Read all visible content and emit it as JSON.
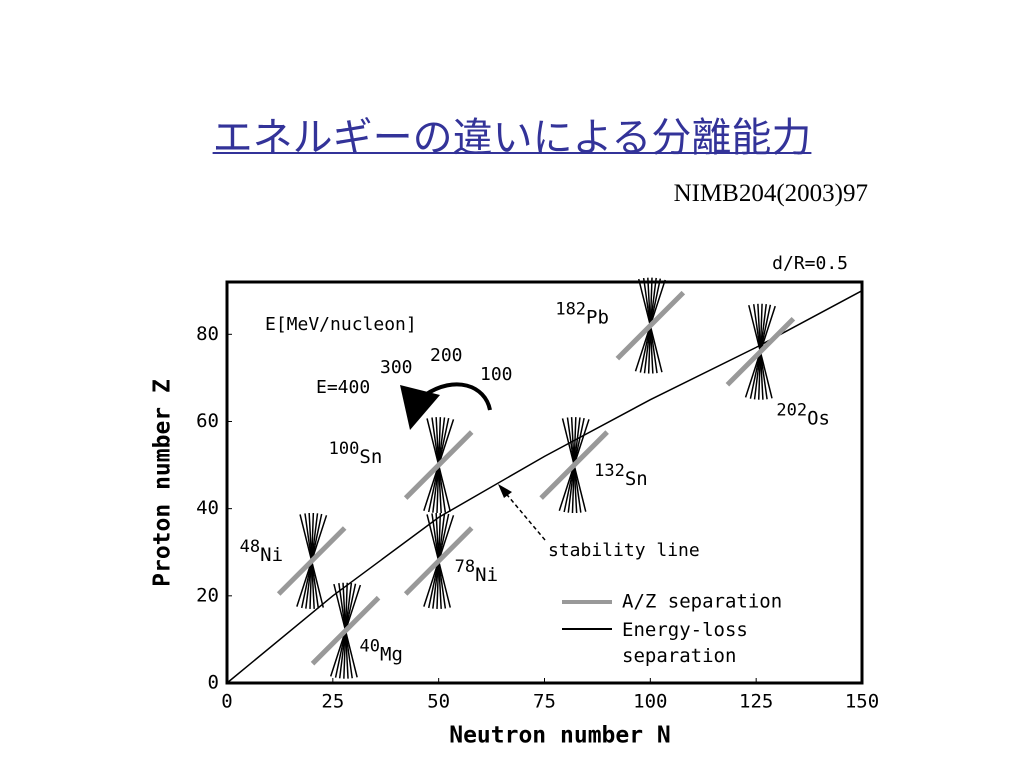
{
  "slide": {
    "title": "エネルギーの違いによる分離能力",
    "reference": "NIMB204(2003)97"
  },
  "chart_data": {
    "type": "scatter",
    "note": "d/R=0.5",
    "x_label": "Neutron number N",
    "y_label": "Proton number Z",
    "xlim": [
      0,
      150
    ],
    "xticks": [
      0,
      25,
      50,
      75,
      100,
      125,
      150
    ],
    "ylim": [
      0,
      92
    ],
    "yticks": [
      0,
      20,
      40,
      60,
      80
    ],
    "energy_title": "E[MeV/nucleon]",
    "energy_labels": [
      "E=400",
      "300",
      "200",
      "100"
    ],
    "nuclei": [
      {
        "mass": "48",
        "element": "Ni",
        "n": 20,
        "z": 28
      },
      {
        "mass": "40",
        "element": "Mg",
        "n": 28,
        "z": 12
      },
      {
        "mass": "78",
        "element": "Ni",
        "n": 50,
        "z": 28
      },
      {
        "mass": "100",
        "element": "Sn",
        "n": 50,
        "z": 50
      },
      {
        "mass": "132",
        "element": "Sn",
        "n": 82,
        "z": 50
      },
      {
        "mass": "182",
        "element": "Pb",
        "n": 100,
        "z": 82
      },
      {
        "mass": "202",
        "element": "Os",
        "n": 126,
        "z": 76
      }
    ],
    "stability_line": {
      "label": "stability line",
      "x": [
        0,
        25,
        50,
        75,
        100,
        125,
        150
      ],
      "y": [
        0,
        20,
        38,
        52,
        65,
        77,
        90
      ]
    },
    "series": [
      {
        "name": "A/Z separation",
        "color": "#999999"
      },
      {
        "name": "Energy-loss separation",
        "color": "#000000"
      }
    ]
  }
}
